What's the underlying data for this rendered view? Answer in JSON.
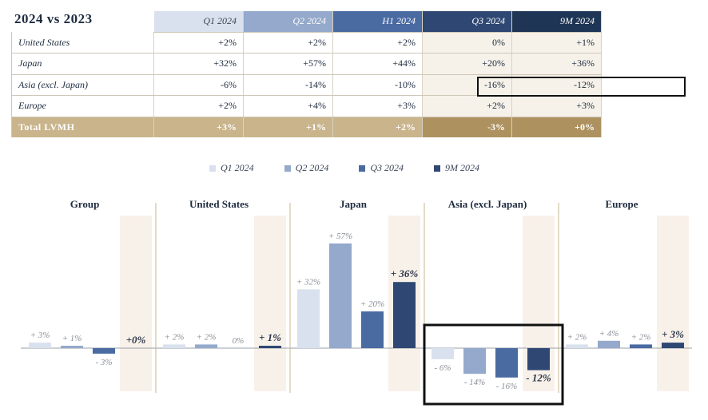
{
  "table": {
    "title": "2024 vs 2023",
    "columns": [
      "Q1 2024",
      "Q2 2024",
      "H1 2024",
      "Q3 2024",
      "9M 2024"
    ],
    "rows": [
      {
        "label": "United States",
        "values": [
          "+2%",
          "+2%",
          "+2%",
          "0%",
          "+1%"
        ]
      },
      {
        "label": "Japan",
        "values": [
          "+32%",
          "+57%",
          "+44%",
          "+20%",
          "+36%"
        ]
      },
      {
        "label": "Asia (excl. Japan)",
        "values": [
          "-6%",
          "-14%",
          "-10%",
          "-16%",
          "-12%"
        ]
      },
      {
        "label": "Europe",
        "values": [
          "+2%",
          "+4%",
          "+3%",
          "+2%",
          "+3%"
        ]
      },
      {
        "label": "Total LVMH",
        "values": [
          "+3%",
          "+1%",
          "+2%",
          "-3%",
          "+0%"
        ]
      }
    ]
  },
  "colors": {
    "q1": "#d9e1ee",
    "q2": "#94a9cb",
    "q3": "#4a6aa2",
    "m9": "#2f4873",
    "gold": "#c9b48c",
    "shade": "#f8f1ea"
  },
  "chart_data": {
    "type": "bar",
    "legend": [
      "Q1 2024",
      "Q2 2024",
      "Q3 2024",
      "9M 2024"
    ],
    "legend_position": "top",
    "groups": [
      {
        "name": "Group",
        "values": [
          3,
          1,
          -3,
          0
        ],
        "labels": [
          "+ 3%",
          "+ 1%",
          "- 3%",
          "+0%"
        ]
      },
      {
        "name": "United States",
        "values": [
          2,
          2,
          0,
          1
        ],
        "labels": [
          "+ 2%",
          "+ 2%",
          "0%",
          "+ 1%"
        ]
      },
      {
        "name": "Japan",
        "values": [
          32,
          57,
          20,
          36
        ],
        "labels": [
          "+ 32%",
          "+ 57%",
          "+ 20%",
          "+ 36%"
        ]
      },
      {
        "name": "Asia (excl. Japan)",
        "values": [
          -6,
          -14,
          -16,
          -12
        ],
        "labels": [
          "- 6%",
          "- 14%",
          "- 16%",
          "- 12%"
        ]
      },
      {
        "name": "Europe",
        "values": [
          2,
          4,
          2,
          3
        ],
        "labels": [
          "+ 2%",
          "+ 4%",
          "+ 2%",
          "+ 3%"
        ]
      }
    ],
    "highlighted_group": "Asia (excl. Japan)"
  }
}
